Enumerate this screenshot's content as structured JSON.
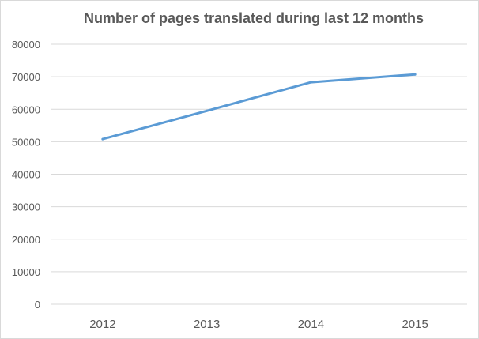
{
  "chart_data": {
    "type": "line",
    "title": "Number of pages translated  during  last  12 months",
    "xlabel": "",
    "ylabel": "",
    "categories": [
      "2012",
      "2013",
      "2014",
      "2015"
    ],
    "series": [
      {
        "values": [
          50800,
          59500,
          68300,
          70700
        ],
        "color": "#5b9bd5"
      }
    ],
    "ylim": [
      0,
      80000
    ],
    "yticks": [
      0,
      10000,
      20000,
      30000,
      40000,
      50000,
      60000,
      70000,
      80000
    ],
    "grid": true,
    "gridline_color": "#d9d9d9",
    "legend": "none"
  }
}
